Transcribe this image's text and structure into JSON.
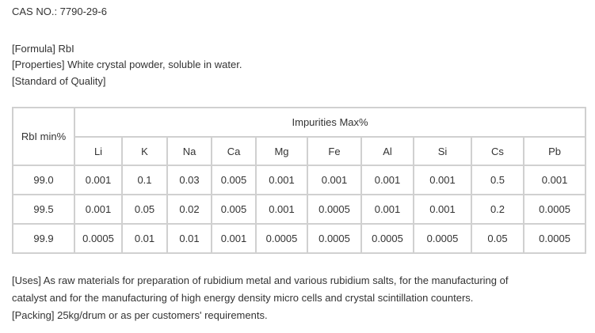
{
  "cas": "CAS NO.: 7790-29-6",
  "formula": "[Formula] RbI",
  "properties": "[Properties] White crystal powder, soluble in water.",
  "standard": "[Standard of Quality]",
  "table": {
    "first_header": "RbI min%",
    "group_header": "Impurities Max%",
    "columns": [
      "Li",
      "K",
      "Na",
      "Ca",
      "Mg",
      "Fe",
      "Al",
      "Si",
      "Cs",
      "Pb"
    ],
    "rows": [
      {
        "grade": "99.0",
        "values": [
          "0.001",
          "0.1",
          "0.03",
          "0.005",
          "0.001",
          "0.001",
          "0.001",
          "0.001",
          "0.5",
          "0.001"
        ]
      },
      {
        "grade": "99.5",
        "values": [
          "0.001",
          "0.05",
          "0.02",
          "0.005",
          "0.001",
          "0.0005",
          "0.001",
          "0.001",
          "0.2",
          "0.0005"
        ]
      },
      {
        "grade": "99.9",
        "values": [
          "0.0005",
          "0.01",
          "0.01",
          "0.001",
          "0.0005",
          "0.0005",
          "0.0005",
          "0.0005",
          "0.05",
          "0.0005"
        ]
      }
    ]
  },
  "uses_line1": "[Uses] As raw materials for preparation of rubidium metal and various rubidium salts, for the manufacturing of",
  "uses_line2": "catalyst and for the manufacturing of high energy density micro cells and crystal scintillation counters.",
  "packing": "[Packing] 25kg/drum or as per customers' requirements."
}
